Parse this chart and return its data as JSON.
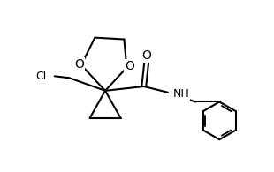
{
  "background": "#ffffff",
  "line_color": "#000000",
  "line_width": 1.5,
  "font_size": 9,
  "figsize": [
    3.1,
    1.95
  ],
  "dpi": 100,
  "xlim": [
    0,
    310
  ],
  "ylim": [
    0,
    195
  ]
}
